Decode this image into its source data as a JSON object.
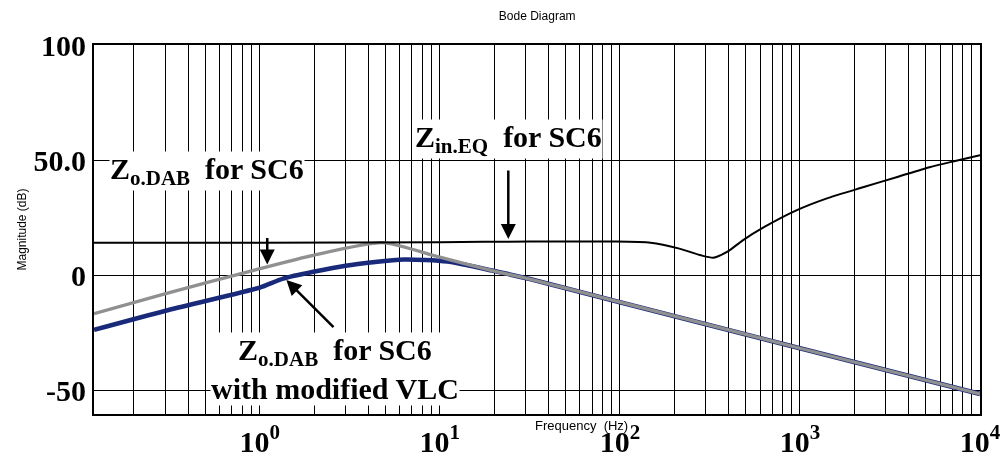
{
  "chart_data": {
    "type": "line",
    "title": "Bode Diagram",
    "xlabel": "Frequency  (Hz)",
    "ylabel": "Magnitude (dB)",
    "log": "x",
    "xlim": [
      0.12,
      10000
    ],
    "xticks": [
      {
        "value": 1,
        "label": "10$^{0}$"
      },
      {
        "value": 10,
        "label": "10$^{1}$"
      },
      {
        "value": 100,
        "label": "10$^{2}$"
      },
      {
        "value": 1000,
        "label": "10$^{3}$"
      },
      {
        "value": 10000,
        "label": "10$^{4}$"
      }
    ],
    "ylim": [
      -60,
      100
    ],
    "yticks": [
      -50,
      0,
      {
        "value": 50,
        "label": "50.0"
      },
      100
    ],
    "grid": true,
    "marker": "none",
    "line_style": "solid",
    "series": [
      {
        "color": "#1a2a7a",
        "x": [
          0.12,
          0.3,
          1,
          1.35,
          3,
          6.3,
          11,
          19.5,
          31.6,
          100,
          1000,
          10000
        ],
        "values": [
          -23.5,
          -15.2,
          -5.2,
          -1.3,
          4.3,
          7,
          6.1,
          2.2,
          -1.5,
          -11.5,
          -31.5,
          -51.3
        ]
      },
      {
        "color": "#909090",
        "x": [
          0.12,
          0.3,
          1,
          1.95,
          4.8,
          10,
          19.5,
          31.6,
          100,
          1000,
          10000
        ],
        "values": [
          -16.5,
          -7.8,
          3,
          8.7,
          14.3,
          8,
          2.2,
          -1.5,
          -11.5,
          -31.5,
          -51.3
        ]
      },
      {
        "color": "#000000",
        "x": [
          0.12,
          1,
          10,
          31.6,
          89,
          148,
          214,
          282,
          331,
          398,
          479,
          631,
          955,
          1413,
          2239,
          3548,
          5248,
          7079,
          10000
        ],
        "values": [
          14.3,
          14.3,
          14.5,
          14.8,
          14.8,
          14.3,
          11.7,
          8.8,
          7.8,
          10.5,
          15.2,
          21,
          28.3,
          33.5,
          38.3,
          43,
          47,
          49.5,
          52.2
        ]
      }
    ],
    "annotations": [
      {
        "text": "Z$_{o.DAB}$  for SC6",
        "x": 1.1,
        "y": 4
      },
      {
        "text": "Z$_{in.EQ}$  for SC6",
        "x": 24,
        "y": 15
      },
      {
        "text": "Z$_{o.DAB}$  for SC6\nwith modified VLC",
        "x": 1.38,
        "y": -1.3
      }
    ]
  }
}
